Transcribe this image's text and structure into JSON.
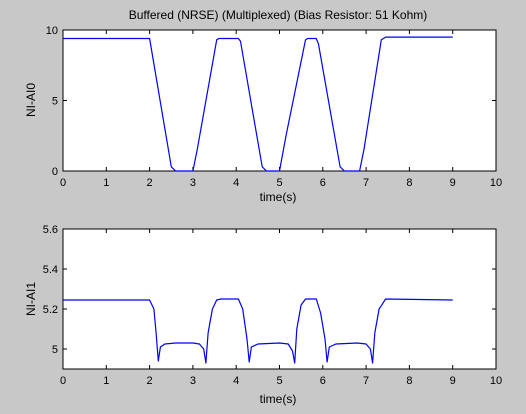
{
  "chart_data": [
    {
      "type": "line",
      "title": "Buffered (NRSE) (Multiplexed) (Bias Resistor: 51 Kohm)",
      "xlabel": "time(s)",
      "ylabel": "NI-AI0",
      "xlim": [
        0,
        10
      ],
      "ylim": [
        0,
        10
      ],
      "xticks": [
        "0",
        "1",
        "2",
        "3",
        "4",
        "5",
        "6",
        "7",
        "8",
        "9",
        "10"
      ],
      "yticks": [
        "0",
        "5",
        "10"
      ],
      "grid": false,
      "series": [
        {
          "color": "#0000ff",
          "x": [
            0,
            2.0,
            2.5,
            2.6,
            3.0,
            3.1,
            3.55,
            3.6,
            4.05,
            4.1,
            4.6,
            4.7,
            5.0,
            5.15,
            5.6,
            5.65,
            5.85,
            5.9,
            6.4,
            6.5,
            6.85,
            6.95,
            7.35,
            7.45,
            9.0
          ],
          "y": [
            9.4,
            9.4,
            0.3,
            0,
            0,
            1.5,
            9.3,
            9.4,
            9.4,
            9.2,
            0.3,
            0,
            0,
            2.5,
            9.3,
            9.4,
            9.4,
            9.0,
            0.3,
            0,
            0,
            1.5,
            9.3,
            9.5,
            9.5
          ]
        }
      ]
    },
    {
      "type": "line",
      "title": "",
      "xlabel": "time(s)",
      "ylabel": "NI-AI1",
      "xlim": [
        0,
        10
      ],
      "ylim": [
        4.9,
        5.6
      ],
      "xticks": [
        "0",
        "1",
        "2",
        "3",
        "4",
        "5",
        "6",
        "7",
        "8",
        "9",
        "10"
      ],
      "yticks": [
        "5",
        "5.2",
        "5.4",
        "5.6"
      ],
      "grid": false,
      "series": [
        {
          "color": "#0000ff",
          "x": [
            0,
            2.0,
            2.1,
            2.15,
            2.2,
            2.25,
            2.35,
            2.6,
            3.0,
            3.15,
            3.25,
            3.3,
            3.35,
            3.45,
            3.55,
            3.65,
            4.05,
            4.15,
            4.25,
            4.3,
            4.35,
            4.5,
            5.0,
            5.2,
            5.3,
            5.35,
            5.4,
            5.5,
            5.6,
            5.85,
            5.95,
            6.05,
            6.1,
            6.15,
            6.3,
            6.8,
            7.0,
            7.1,
            7.15,
            7.2,
            7.3,
            7.45,
            9.0
          ],
          "y": [
            5.245,
            5.245,
            5.2,
            5.08,
            4.94,
            5.01,
            5.025,
            5.03,
            5.03,
            5.025,
            5.0,
            4.93,
            5.08,
            5.2,
            5.245,
            5.25,
            5.25,
            5.2,
            5.05,
            4.935,
            5.01,
            5.025,
            5.03,
            5.025,
            4.99,
            4.93,
            5.1,
            5.22,
            5.25,
            5.25,
            5.18,
            5.05,
            4.935,
            5.01,
            5.025,
            5.03,
            5.025,
            5.0,
            4.93,
            5.08,
            5.2,
            5.25,
            5.245
          ]
        }
      ]
    }
  ]
}
